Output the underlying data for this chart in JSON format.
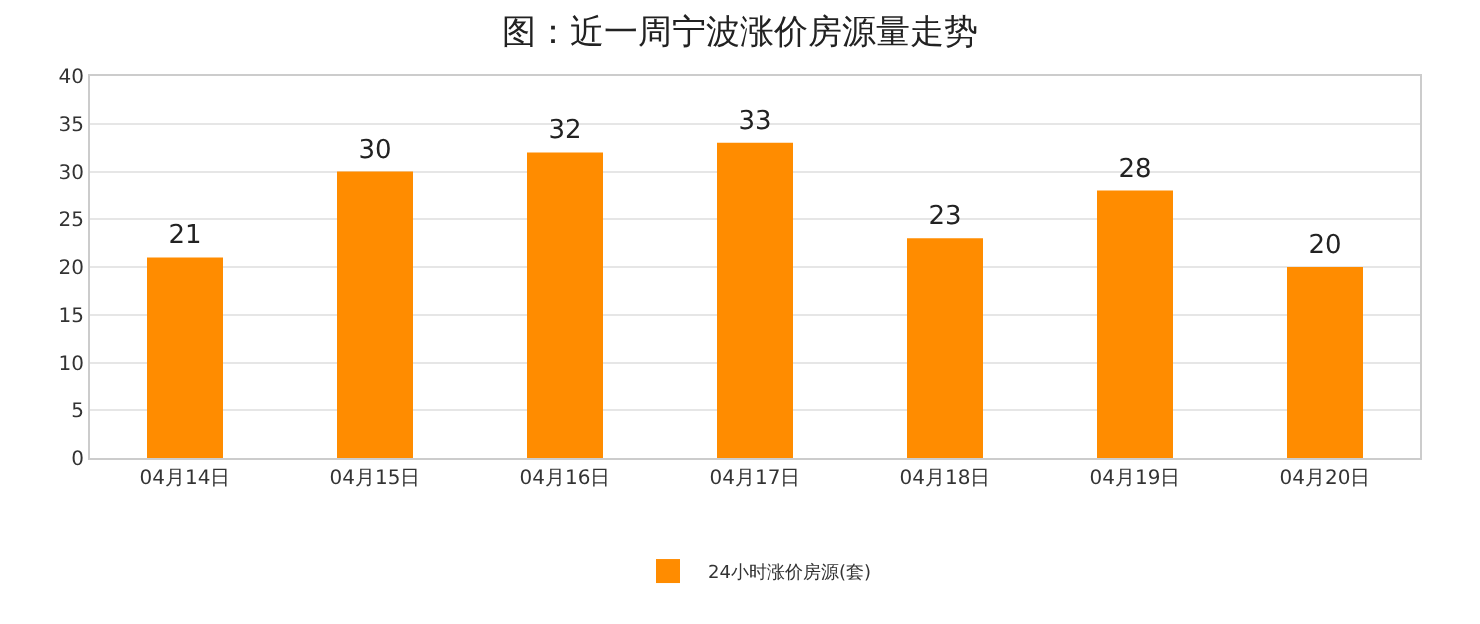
{
  "chart_data": {
    "type": "bar",
    "title": "图：近一周宁波涨价房源量走势",
    "categories": [
      "04月14日",
      "04月15日",
      "04月16日",
      "04月17日",
      "04月18日",
      "04月19日",
      "04月20日"
    ],
    "series": [
      {
        "name": "24小时涨价房源(套)",
        "color": "#ff8c00",
        "values": [
          21,
          30,
          32,
          33,
          23,
          28,
          20
        ]
      }
    ],
    "ylim": [
      0,
      40
    ],
    "yticks": [
      0,
      5,
      10,
      15,
      20,
      25,
      30,
      35,
      40
    ],
    "grid": "y",
    "legend": "bottom",
    "data_labels": true
  }
}
